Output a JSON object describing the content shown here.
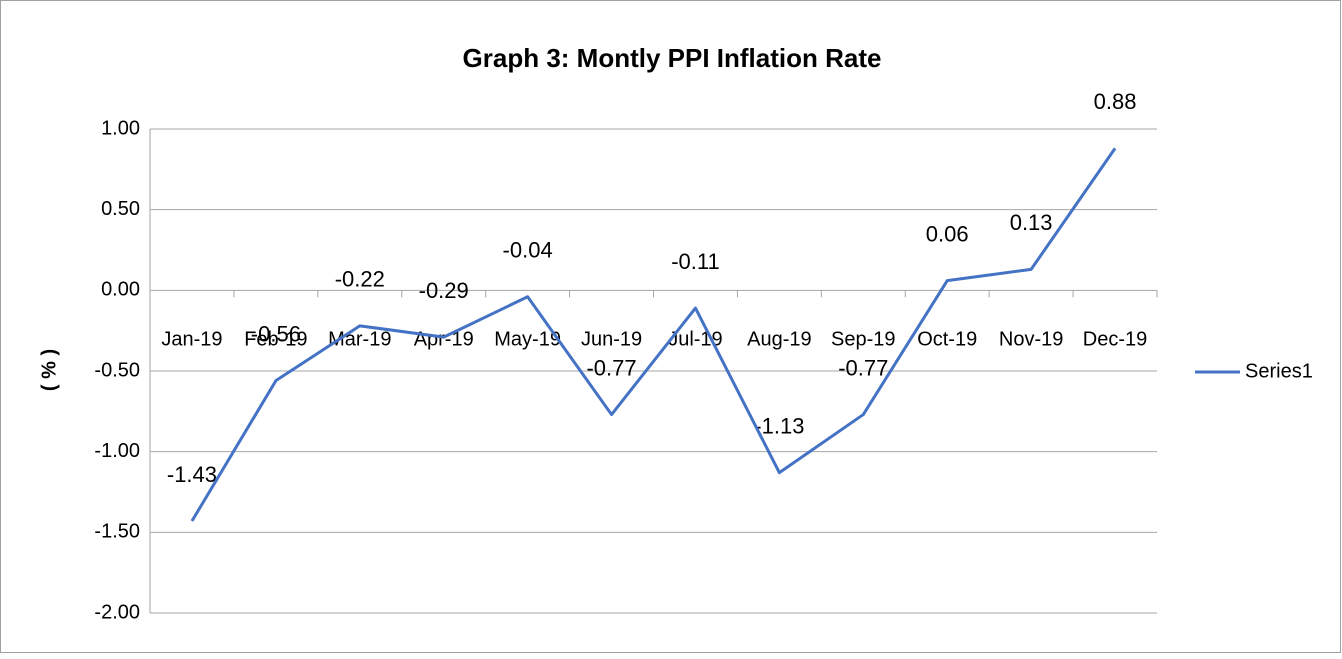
{
  "chart_data": {
    "type": "line",
    "title": "Graph 3: Montly PPI Inflation Rate",
    "y_label": "( % )",
    "categories": [
      "Jan-19",
      "Feb-19",
      "Mar-19",
      "Apr-19",
      "May-19",
      "Jun-19",
      "Jul-19",
      "Aug-19",
      "Sep-19",
      "Oct-19",
      "Nov-19",
      "Dec-19"
    ],
    "series": [
      {
        "name": "Series1",
        "color": "#4472c4",
        "values": [
          -1.43,
          -0.56,
          -0.22,
          -0.29,
          -0.04,
          -0.77,
          -0.11,
          -1.13,
          -0.77,
          0.06,
          0.13,
          0.88
        ]
      }
    ],
    "ylim": [
      -2,
      1
    ],
    "yticks": [
      {
        "value": -2,
        "label": "-2.00"
      },
      {
        "value": -1.5,
        "label": "-1.50"
      },
      {
        "value": -1,
        "label": "-1.00"
      },
      {
        "value": -0.5,
        "label": "-0.50"
      },
      {
        "value": 0,
        "label": "0.00"
      },
      {
        "value": 0.5,
        "label": "0.50"
      },
      {
        "value": 1,
        "label": "1.00"
      }
    ],
    "grid": true,
    "legend": "right"
  }
}
